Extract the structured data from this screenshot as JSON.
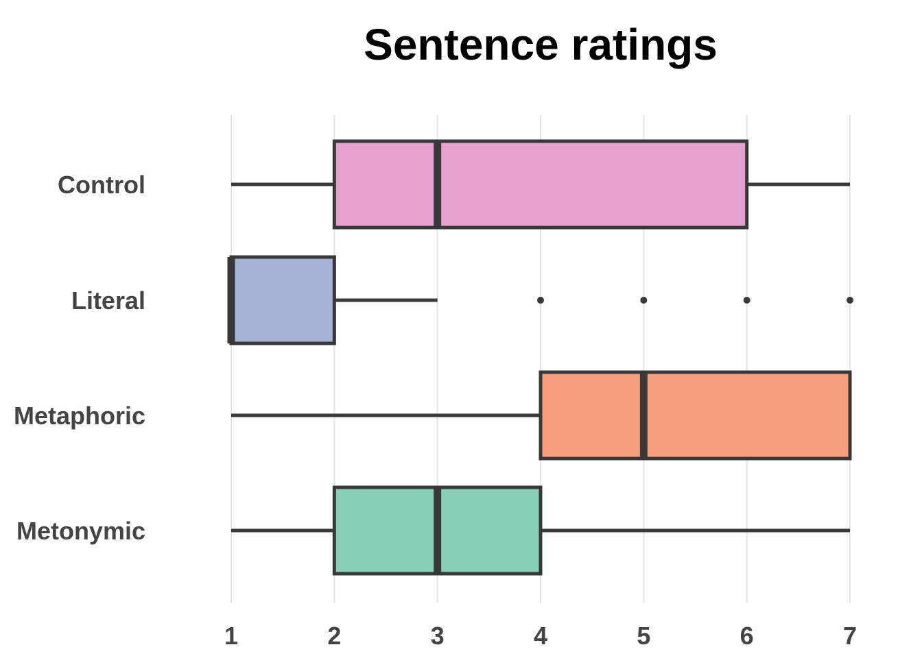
{
  "chart_data": {
    "type": "boxplot",
    "title": "Sentence ratings",
    "xlabel": "",
    "ylabel": "",
    "xlim": [
      1,
      7
    ],
    "x_ticks": [
      "1",
      "2",
      "3",
      "4",
      "5",
      "6",
      "7"
    ],
    "grid": "vertical major gridlines",
    "legend": "none",
    "categories": [
      "Control",
      "Literal",
      "Metaphoric",
      "Metonymic"
    ],
    "series": [
      {
        "category": "Control",
        "whisker_low": 1,
        "q1": 2,
        "median": 3,
        "q3": 6,
        "whisker_high": 7,
        "outliers": [],
        "color": "#e7a1cf"
      },
      {
        "category": "Literal",
        "whisker_low": 1,
        "q1": 1,
        "median": 1,
        "q3": 2,
        "whisker_high": 3,
        "outliers": [
          4,
          5,
          6,
          7
        ],
        "color": "#a3b2d5"
      },
      {
        "category": "Metaphoric",
        "whisker_low": 1,
        "q1": 4,
        "median": 5,
        "q3": 7,
        "whisker_high": 7,
        "outliers": [],
        "color": "#fa9f7d"
      },
      {
        "category": "Metonymic",
        "whisker_low": 1,
        "q1": 2,
        "median": 3,
        "q3": 4,
        "whisker_high": 7,
        "outliers": [],
        "color": "#87cfb7"
      }
    ]
  }
}
